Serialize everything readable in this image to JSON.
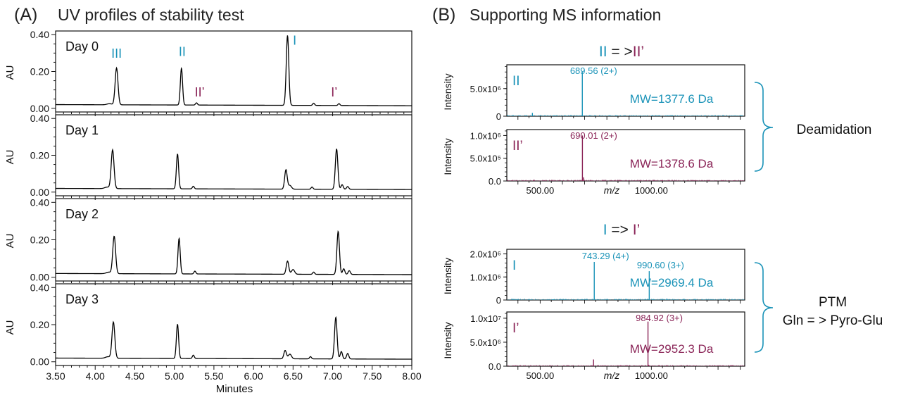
{
  "panel_a": {
    "label": "(A)",
    "title": "UV profiles of stability test",
    "x_label": "Minutes",
    "y_label": "AU"
  },
  "panel_b": {
    "label": "(B)",
    "title": "Supporting MS information",
    "mz_label": "m/z",
    "intensity_label": "Intensity",
    "brace_labels": {
      "top": "Deamidation",
      "bottom_line1": "PTM",
      "bottom_line2": "Gln = > Pyro-Glu"
    },
    "pairs": [
      {
        "from": "II",
        "arrow": " = >",
        "to": "II’"
      },
      {
        "from": "I",
        "arrow": " => ",
        "to": "I’"
      }
    ]
  },
  "colors": {
    "teal": "#1a93b8",
    "maroon": "#8a2457",
    "trace": "#000000"
  },
  "chart_data": [
    {
      "type": "line",
      "title": "UV profiles of stability test",
      "xlabel": "Minutes",
      "ylabel": "AU",
      "xlim": [
        3.5,
        8.0
      ],
      "ylim": [
        -0.02,
        0.42
      ],
      "x_ticks": [
        "3.50",
        "4.00",
        "4.50",
        "5.00",
        "5.50",
        "6.00",
        "6.50",
        "7.00",
        "7.50",
        "8.00"
      ],
      "y_ticks": [
        "0.00",
        "0.20",
        "0.40"
      ],
      "baseline": 0.02,
      "series": [
        {
          "name": "Day 0",
          "peaks": [
            [
              4.27,
              0.2,
              0.018
            ],
            [
              4.18,
              0.006,
              0.03
            ],
            [
              5.09,
              0.2,
              0.014
            ],
            [
              5.28,
              0.012,
              0.012
            ],
            [
              6.43,
              0.38,
              0.016
            ],
            [
              6.76,
              0.012,
              0.012
            ],
            [
              7.08,
              0.01,
              0.012
            ]
          ],
          "annotations": [
            {
              "text": "III",
              "x": 4.27,
              "y": 0.275,
              "color": "teal"
            },
            {
              "text": "II",
              "x": 5.1,
              "y": 0.285,
              "color": "teal"
            },
            {
              "text": "II’",
              "x": 5.32,
              "y": 0.065,
              "color": "maroon"
            },
            {
              "text": "I",
              "x": 6.52,
              "y": 0.345,
              "color": "teal"
            },
            {
              "text": "I’",
              "x": 7.02,
              "y": 0.065,
              "color": "maroon"
            }
          ]
        },
        {
          "name": "Day 1",
          "peaks": [
            [
              4.22,
              0.21,
              0.018
            ],
            [
              4.15,
              0.008,
              0.03
            ],
            [
              5.04,
              0.19,
              0.014
            ],
            [
              5.24,
              0.014,
              0.012
            ],
            [
              6.41,
              0.105,
              0.016
            ],
            [
              6.46,
              0.02,
              0.02
            ],
            [
              6.74,
              0.012,
              0.012
            ],
            [
              7.05,
              0.22,
              0.016
            ],
            [
              7.12,
              0.025,
              0.014
            ],
            [
              7.19,
              0.015,
              0.014
            ]
          ],
          "annotations": []
        },
        {
          "name": "Day 2",
          "peaks": [
            [
              4.24,
              0.2,
              0.018
            ],
            [
              4.17,
              0.008,
              0.03
            ],
            [
              5.06,
              0.19,
              0.014
            ],
            [
              5.26,
              0.015,
              0.012
            ],
            [
              6.43,
              0.07,
              0.016
            ],
            [
              6.5,
              0.025,
              0.02
            ],
            [
              6.76,
              0.012,
              0.012
            ],
            [
              7.07,
              0.23,
              0.016
            ],
            [
              7.14,
              0.03,
              0.014
            ],
            [
              7.21,
              0.02,
              0.014
            ]
          ],
          "annotations": []
        },
        {
          "name": "Day 3",
          "peaks": [
            [
              4.23,
              0.195,
              0.018
            ],
            [
              4.16,
              0.008,
              0.03
            ],
            [
              5.04,
              0.185,
              0.014
            ],
            [
              5.24,
              0.018,
              0.012
            ],
            [
              6.4,
              0.045,
              0.016
            ],
            [
              6.46,
              0.025,
              0.02
            ],
            [
              6.72,
              0.012,
              0.012
            ],
            [
              7.04,
              0.225,
              0.016
            ],
            [
              7.11,
              0.04,
              0.014
            ],
            [
              7.19,
              0.03,
              0.014
            ]
          ],
          "annotations": []
        }
      ]
    },
    {
      "type": "bar",
      "title": "II = >II’",
      "xlabel": "m/z",
      "xlim": [
        350,
        1420
      ],
      "x_ticks": [
        "500.00",
        "1000.00"
      ],
      "x_tick_values": [
        500,
        1000
      ],
      "spectra": [
        {
          "name": "II",
          "color": "teal",
          "ylabel": "Intensity",
          "y_ticks": [
            "0",
            "5.0x10⁶"
          ],
          "y_tick_values": [
            0,
            5000000
          ],
          "ymax": 9300000,
          "mw": "MW=1377.6 Da",
          "peaks": [
            [
              689.56,
              8000000
            ],
            [
              465,
              600000
            ],
            [
              560,
              90000
            ],
            [
              1000,
              120000
            ],
            [
              1080,
              60000
            ],
            [
              1165,
              40000
            ]
          ],
          "labels": [
            {
              "text": "689.56 (2+)",
              "mz": 689.56
            }
          ]
        },
        {
          "name": "II’",
          "color": "maroon",
          "ylabel": "Intensity",
          "y_ticks": [
            "0.0",
            "5.0x10⁵",
            "1.0x10⁶"
          ],
          "y_tick_values": [
            0,
            500000,
            1000000
          ],
          "ymax": 1130000,
          "mw": "MW=1378.6 Da",
          "peaks": [
            [
              690.01,
              1000000
            ],
            [
              695,
              80000
            ],
            [
              470,
              25000
            ],
            [
              900,
              20000
            ],
            [
              1050,
              15000
            ]
          ],
          "labels": [
            {
              "text": "690.01 (2+)",
              "mz": 690.01
            }
          ]
        }
      ]
    },
    {
      "type": "bar",
      "title": "I => I’",
      "xlabel": "m/z",
      "xlim": [
        350,
        1420
      ],
      "x_ticks": [
        "500.00",
        "1000.00"
      ],
      "x_tick_values": [
        500,
        1000
      ],
      "spectra": [
        {
          "name": "I",
          "color": "teal",
          "ylabel": "Intensity",
          "y_ticks": [
            "0",
            "1.0x10⁶",
            "2.0x10⁶"
          ],
          "y_tick_values": [
            0,
            1000000,
            2000000
          ],
          "ymax": 2200000,
          "mw": "MW=2969.4 Da",
          "peaks": [
            [
              743.29,
              1650000
            ],
            [
              990.6,
              1250000
            ],
            [
              1070,
              60000
            ],
            [
              890,
              40000
            ],
            [
              560,
              30000
            ],
            [
              1200,
              30000
            ]
          ],
          "labels": [
            {
              "text": "743.29 (4+)",
              "mz": 743.29
            },
            {
              "text": "990.60 (3+)",
              "mz": 990.6
            }
          ]
        },
        {
          "name": "I’",
          "color": "maroon",
          "ylabel": "Intensity",
          "y_ticks": [
            "0.0",
            "5.0x10⁶",
            "1.0x10⁷"
          ],
          "y_tick_values": [
            0,
            5000000,
            10000000
          ],
          "ymax": 11300000,
          "mw": "MW=2952.3 Da",
          "peaks": [
            [
              984.92,
              9300000
            ],
            [
              740,
              1400000
            ],
            [
              987,
              300000
            ],
            [
              600,
              100000
            ],
            [
              860,
              80000
            ]
          ],
          "labels": [
            {
              "text": "984.92 (3+)",
              "mz": 984.92
            }
          ]
        }
      ]
    }
  ]
}
